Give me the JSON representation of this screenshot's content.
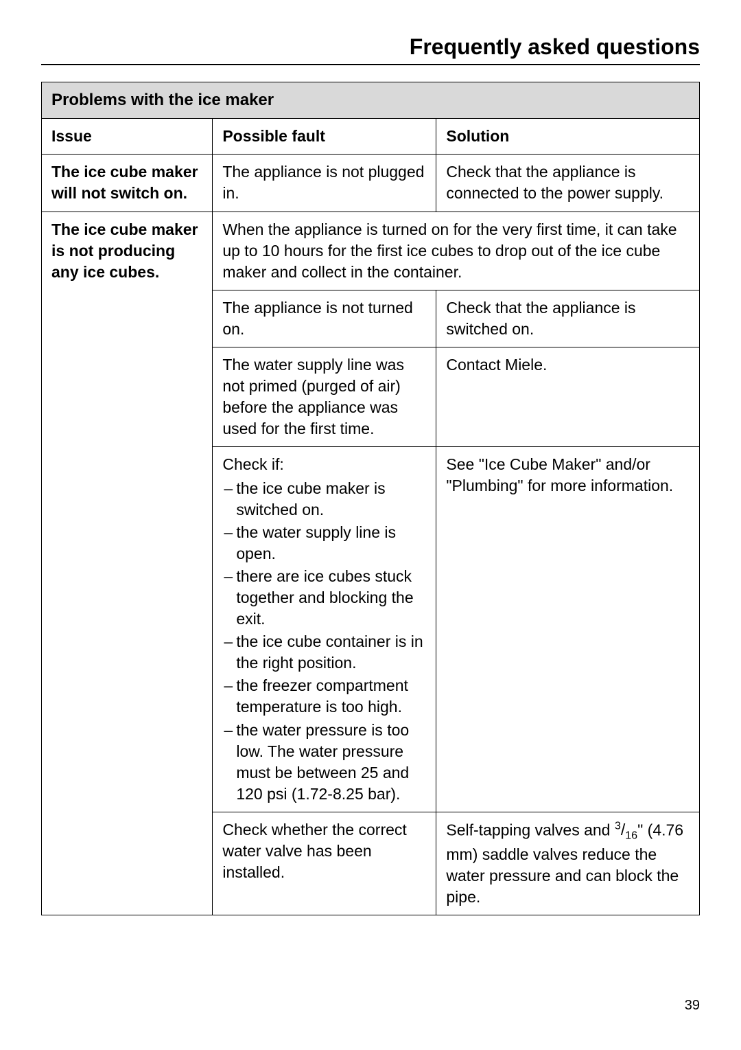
{
  "page": {
    "title": "Frequently asked questions",
    "number": "39"
  },
  "table": {
    "section_header": "Problems with the ice maker",
    "columns": {
      "issue": "Issue",
      "fault": "Possible fault",
      "solution": "Solution"
    },
    "rows": [
      {
        "issue": "The ice cube maker will not switch on.",
        "fault": "The appliance is not plugged in.",
        "solution": "Check that the appliance is connected to the power supply."
      },
      {
        "issue": "The ice cube maker is not producing any ice cubes.",
        "fault_merged": "When the appliance is turned on for the very first time, it can take up to 10 hours for the first ice cubes to drop out of the ice cube maker and collect in the container."
      },
      {
        "fault": "The appliance is not turned on.",
        "solution": "Check that the appliance is switched on."
      },
      {
        "fault": "The water supply line was not primed (purged of air) before the appliance was used for the first time.",
        "solution": "Contact Miele."
      },
      {
        "fault_intro": "Check if:",
        "fault_items": [
          "the ice cube maker is switched on.",
          "the water supply line is open.",
          "there are ice cubes stuck together and blocking the exit.",
          "the ice cube container is in the right position.",
          "the freezer compartment temperature is too high.",
          "the water pressure is too low. The water pressure must be between 25 and 120 psi (1.72-8.25 bar)."
        ],
        "solution": "See \"Ice Cube Maker\" and/or \"Plumbing\" for more information."
      },
      {
        "fault": "Check whether the correct water valve has been installed.",
        "solution_pre": "Self-tapping valves and ",
        "solution_frac_num": "3",
        "solution_frac_den": "16",
        "solution_post": "\" (4.76 mm) saddle valves reduce the water pressure and can block the pipe."
      }
    ]
  }
}
